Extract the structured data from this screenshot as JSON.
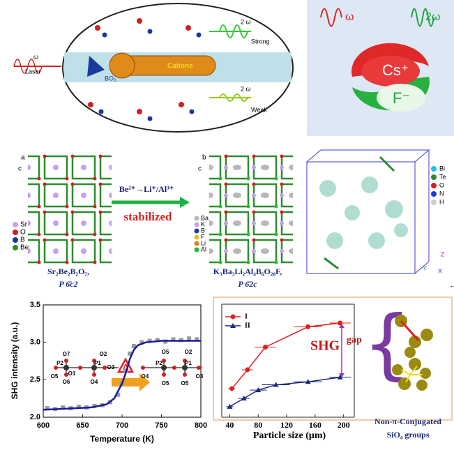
{
  "panels": [
    {
      "labels": [
        "Laser",
        "ω",
        "2 ω",
        "Strong",
        "2 ω",
        "Weak",
        "BO₃",
        "Cations"
      ]
    },
    {
      "labels": [
        "ω",
        "2ω",
        "Cs⁺",
        "F⁻"
      ]
    },
    {
      "axes": [
        "a",
        "c"
      ],
      "legend": [
        "Sr",
        "O",
        "B",
        "Be"
      ],
      "formula": "Sr₂Be₂B₂O₇,",
      "space_group": "P 6̄c2"
    },
    {
      "reaction": "Be²⁺→Li⁺/Al³⁺",
      "note": "stabilized"
    },
    {
      "axes": [
        "b",
        "c"
      ],
      "legend": [
        "Ba",
        "K",
        "B",
        "F",
        "Li",
        "Al"
      ],
      "formula": "K₃Ba₃Li₂Al₄B₆O₂₀F,",
      "space_group": "P 6̄2c"
    },
    {
      "legend": [
        "Bi",
        "Te",
        "O",
        "N",
        "H"
      ],
      "axes": [
        "Z",
        "Y",
        "X"
      ]
    }
  ],
  "cursor": "←",
  "chart_data": [
    {
      "type": "line",
      "xlabel": "Temperature (K)",
      "ylabel": "SHG intensity (a.u.)",
      "xlim": [
        600,
        800
      ],
      "ylim": [
        2.0,
        3.5
      ],
      "xticks": [
        600,
        650,
        700,
        750,
        800
      ],
      "yticks": [
        {
          "value": 2.0,
          "label": "2.0"
        },
        {
          "value": 2.5,
          "label": "2.5"
        },
        {
          "value": 3.0,
          "label": "3.0"
        },
        {
          "value": 3.5,
          "label": "3.5"
        }
      ],
      "annotation": "Δ",
      "inset_labels": [
        "O7",
        "P2",
        "O1",
        "P1",
        "O2",
        "O5",
        "O3",
        "O6",
        "O4",
        "O4",
        "O5",
        "P2",
        "P1",
        "O2",
        "O3",
        "O5",
        "O5"
      ],
      "series": [
        {
          "kind": "scatter",
          "color": "#9a9a9a",
          "x": [
            605,
            615,
            625,
            635,
            645,
            655,
            665,
            675,
            685,
            695,
            700,
            705,
            710,
            715,
            725,
            735,
            745,
            755,
            765,
            775,
            785,
            795
          ],
          "values": [
            2.12,
            2.11,
            2.13,
            2.12,
            2.14,
            2.13,
            2.15,
            2.16,
            2.2,
            2.3,
            2.45,
            2.62,
            2.85,
            2.95,
            3.0,
            3.02,
            3.03,
            3.01,
            3.04,
            3.03,
            3.05,
            3.04
          ]
        },
        {
          "kind": "line",
          "color": "#1a1a9c",
          "x": [
            600,
            620,
            640,
            660,
            680,
            690,
            700,
            705,
            710,
            715,
            720,
            730,
            750,
            775,
            800
          ],
          "values": [
            2.1,
            2.11,
            2.12,
            2.13,
            2.17,
            2.25,
            2.45,
            2.6,
            2.78,
            2.9,
            2.96,
            3.0,
            3.02,
            3.02,
            3.02
          ]
        }
      ]
    },
    {
      "type": "line",
      "xlabel": "Particle size (μm)",
      "xlim": [
        20,
        215
      ],
      "ylim": [
        2.0,
        3.5
      ],
      "xticks": [
        40,
        80,
        120,
        160,
        200
      ],
      "annotation": [
        "SHG",
        "gap"
      ],
      "side_labels": [
        "Non-π-Conjugated",
        "SiO₄ groups"
      ],
      "series": [
        {
          "name": "I",
          "color": "#e02020",
          "marker": "circle",
          "x": [
            43,
            65,
            90,
            150,
            195
          ],
          "values": [
            2.38,
            2.63,
            2.93,
            3.2,
            3.25
          ],
          "x_errors": [
            5,
            8,
            15,
            20,
            15
          ]
        },
        {
          "name": "II",
          "color": "#1a2a7c",
          "marker": "triangle",
          "x": [
            40,
            60,
            80,
            105,
            150,
            195
          ],
          "values": [
            2.14,
            2.25,
            2.36,
            2.43,
            2.47,
            2.53
          ],
          "x_errors": [
            5,
            8,
            12,
            20,
            20,
            15
          ]
        }
      ]
    }
  ]
}
